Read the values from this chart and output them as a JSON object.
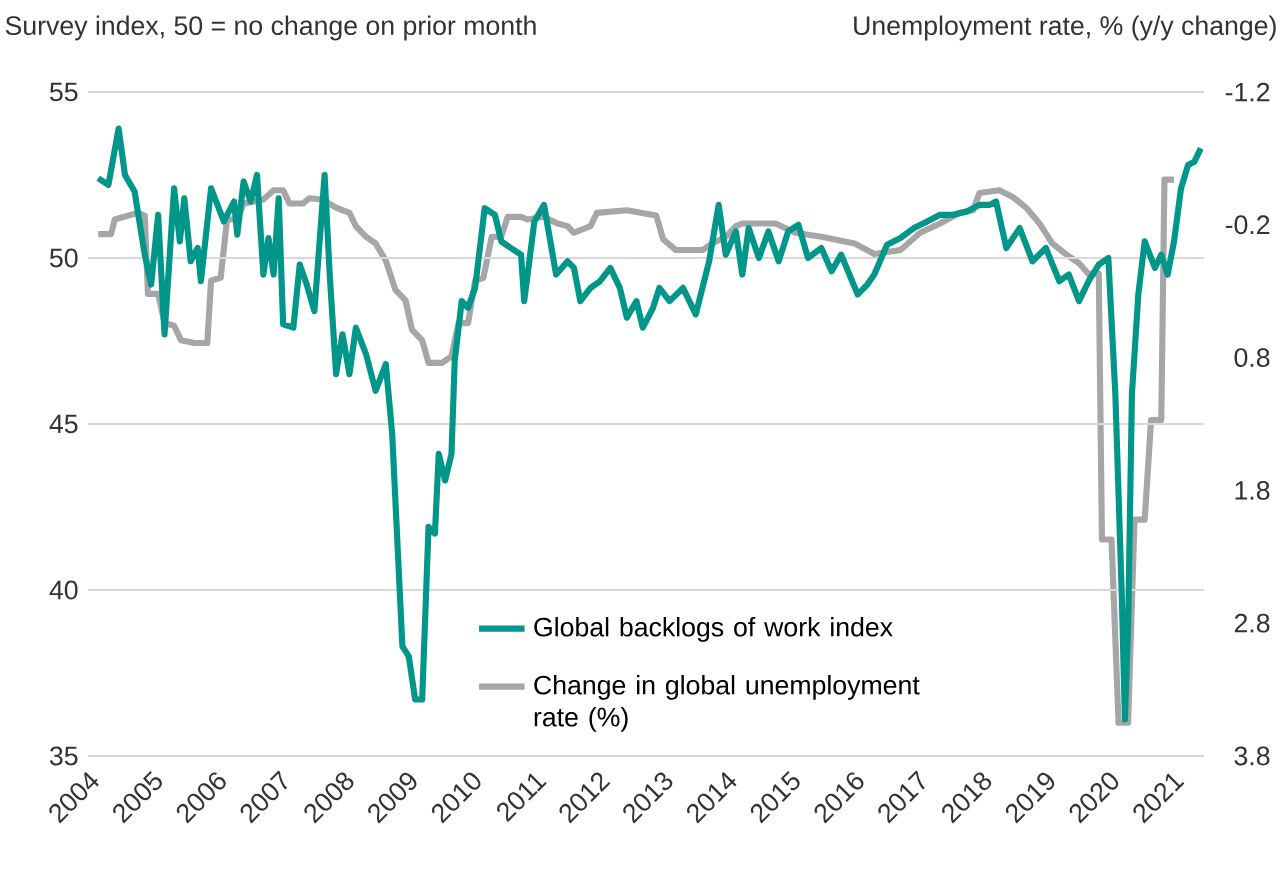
{
  "chart_data": {
    "type": "line",
    "ylabel": "Survey index, 50 = no change on prior month",
    "y2label": "Unemployment  rate, % (y/y change)",
    "xlim": [
      2004,
      2021.5
    ],
    "xticks": [
      2004,
      2005,
      2006,
      2007,
      2008,
      2009,
      2010,
      2011,
      2012,
      2013,
      2014,
      2015,
      2016,
      2017,
      2018,
      2019,
      2020,
      2021
    ],
    "ylim": [
      35,
      55
    ],
    "yticks": [
      35,
      40,
      45,
      50,
      55
    ],
    "y2lim": [
      3.8,
      -1.2
    ],
    "y2ticks": [
      -1.2,
      -0.2,
      0.8,
      1.8,
      2.8,
      3.8
    ],
    "grid": "y",
    "legend": "bottom",
    "series": [
      {
        "name": "Global backlogs of work index",
        "color": "#00968a",
        "x": [
          2004.16,
          2004.32,
          2004.48,
          2004.58,
          2004.73,
          2004.89,
          2004.99,
          2005.1,
          2005.2,
          2005.35,
          2005.44,
          2005.51,
          2005.61,
          2005.72,
          2005.77,
          2005.93,
          2006.13,
          2006.29,
          2006.34,
          2006.44,
          2006.55,
          2006.65,
          2006.75,
          2006.83,
          2006.91,
          2006.99,
          2007.06,
          2007.22,
          2007.32,
          2007.43,
          2007.55,
          2007.71,
          2007.79,
          2007.89,
          2007.99,
          2008.1,
          2008.2,
          2008.36,
          2008.51,
          2008.67,
          2008.77,
          2008.93,
          2009.03,
          2009.13,
          2009.24,
          2009.34,
          2009.44,
          2009.5,
          2009.6,
          2009.7,
          2009.75,
          2009.86,
          2009.96,
          2010.07,
          2010.22,
          2010.38,
          2010.48,
          2010.63,
          2010.79,
          2010.84,
          2011.0,
          2011.15,
          2011.25,
          2011.34,
          2011.52,
          2011.62,
          2011.72,
          2011.88,
          2012.03,
          2012.19,
          2012.34,
          2012.45,
          2012.6,
          2012.7,
          2012.86,
          2012.96,
          2013.12,
          2013.33,
          2013.53,
          2013.74,
          2013.89,
          2014.0,
          2014.16,
          2014.26,
          2014.36,
          2014.52,
          2014.67,
          2014.83,
          2014.98,
          2015.14,
          2015.29,
          2015.5,
          2015.66,
          2015.81,
          2016.07,
          2016.22,
          2016.33,
          2016.53,
          2016.74,
          2016.95,
          2017.16,
          2017.36,
          2017.57,
          2017.78,
          2017.98,
          2018.14,
          2018.24,
          2018.4,
          2018.61,
          2018.81,
          2019.02,
          2019.23,
          2019.38,
          2019.54,
          2019.69,
          2019.85,
          2020.0,
          2020.11,
          2020.21,
          2020.26,
          2020.31,
          2020.37,
          2020.47,
          2020.57,
          2020.73,
          2020.83,
          2020.93,
          2021.03,
          2021.14,
          2021.25,
          2021.35,
          2021.45
        ],
        "values": [
          52.4,
          52.2,
          53.9,
          52.5,
          52.0,
          50.1,
          49.2,
          51.3,
          47.7,
          52.1,
          50.5,
          51.8,
          49.9,
          50.3,
          49.3,
          52.1,
          51.1,
          51.7,
          50.7,
          52.3,
          51.7,
          52.5,
          49.5,
          50.6,
          49.5,
          51.8,
          48.0,
          47.9,
          49.8,
          49.2,
          48.4,
          52.5,
          49.5,
          46.5,
          47.7,
          46.5,
          47.9,
          47.1,
          46.0,
          46.8,
          44.7,
          38.3,
          38.0,
          36.7,
          36.7,
          41.9,
          41.7,
          44.1,
          43.3,
          44.1,
          46.9,
          48.7,
          48.5,
          49.1,
          51.5,
          51.3,
          50.5,
          50.3,
          50.1,
          48.7,
          51.1,
          51.6,
          50.5,
          49.5,
          49.9,
          49.7,
          48.7,
          49.1,
          49.3,
          49.7,
          49.1,
          48.2,
          48.7,
          47.9,
          48.5,
          49.1,
          48.7,
          49.1,
          48.3,
          49.9,
          51.6,
          50.1,
          50.8,
          49.5,
          50.9,
          50.0,
          50.8,
          49.9,
          50.8,
          51.0,
          50.0,
          50.3,
          49.6,
          50.1,
          48.9,
          49.2,
          49.5,
          50.4,
          50.6,
          50.9,
          51.1,
          51.3,
          51.3,
          51.4,
          51.6,
          51.6,
          51.7,
          50.3,
          50.9,
          49.9,
          50.3,
          49.3,
          49.5,
          48.7,
          49.3,
          49.8,
          50.0,
          45.9,
          39.9,
          36.1,
          38.9,
          45.9,
          48.9,
          50.5,
          49.7,
          50.1,
          49.5,
          50.5,
          52.1,
          52.8,
          52.9,
          53.3
        ]
      },
      {
        "name": "Change in global unemployment rate (%)",
        "color": "#a6a6a6",
        "axis": "y2",
        "x": [
          2004.16,
          2004.36,
          2004.42,
          2004.78,
          2004.89,
          2004.94,
          2005.1,
          2005.2,
          2005.35,
          2005.46,
          2005.67,
          2005.87,
          2005.93,
          2006.08,
          2006.18,
          2006.34,
          2006.44,
          2006.75,
          2006.91,
          2007.06,
          2007.16,
          2007.37,
          2007.47,
          2007.68,
          2007.89,
          2008.1,
          2008.2,
          2008.36,
          2008.51,
          2008.67,
          2008.82,
          2008.98,
          2009.08,
          2009.24,
          2009.34,
          2009.55,
          2009.7,
          2009.81,
          2009.96,
          2010.07,
          2010.2,
          2010.33,
          2010.48,
          2010.58,
          2010.79,
          2010.89,
          2011.15,
          2011.36,
          2011.52,
          2011.62,
          2011.88,
          2011.98,
          2012.45,
          2012.91,
          2013.02,
          2013.22,
          2013.64,
          2013.79,
          2014.0,
          2014.16,
          2014.26,
          2014.78,
          2015.09,
          2015.5,
          2016.02,
          2016.33,
          2016.74,
          2017.05,
          2017.36,
          2017.67,
          2017.88,
          2017.98,
          2018.29,
          2018.5,
          2018.71,
          2018.92,
          2019.12,
          2019.33,
          2019.54,
          2019.69,
          2019.85,
          2019.9,
          2020.05,
          2020.16,
          2020.31,
          2020.41,
          2020.57,
          2020.67,
          2020.83,
          2020.88,
          2021.03
        ],
        "values": [
          -0.13,
          -0.13,
          -0.24,
          -0.29,
          -0.27,
          0.32,
          0.32,
          0.54,
          0.56,
          0.67,
          0.69,
          0.69,
          0.22,
          0.2,
          -0.24,
          -0.24,
          -0.36,
          -0.39,
          -0.46,
          -0.46,
          -0.36,
          -0.36,
          -0.4,
          -0.39,
          -0.33,
          -0.29,
          -0.19,
          -0.11,
          -0.06,
          0.07,
          0.29,
          0.37,
          0.59,
          0.67,
          0.84,
          0.84,
          0.79,
          0.54,
          0.54,
          0.22,
          0.2,
          -0.11,
          -0.11,
          -0.26,
          -0.26,
          -0.24,
          -0.26,
          -0.21,
          -0.19,
          -0.14,
          -0.19,
          -0.29,
          -0.31,
          -0.27,
          -0.09,
          -0.01,
          -0.01,
          -0.06,
          -0.11,
          -0.19,
          -0.21,
          -0.21,
          -0.14,
          -0.11,
          -0.06,
          0.02,
          -0.01,
          -0.14,
          -0.21,
          -0.29,
          -0.31,
          -0.44,
          -0.46,
          -0.41,
          -0.33,
          -0.21,
          -0.06,
          0.02,
          0.09,
          0.17,
          0.17,
          2.17,
          2.17,
          3.55,
          3.55,
          2.02,
          2.02,
          1.27,
          1.27,
          -0.54,
          -0.54
        ]
      }
    ]
  }
}
